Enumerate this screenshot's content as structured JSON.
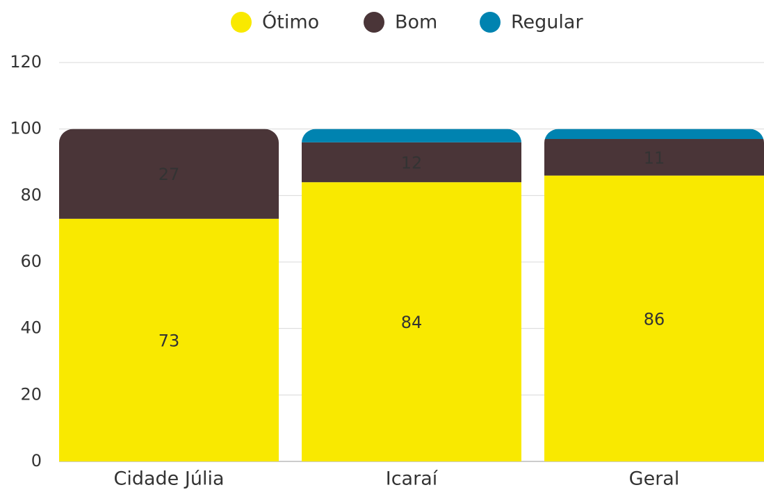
{
  "chart_data": {
    "type": "stacked_bar",
    "categories": [
      "Cidade Júlia",
      "Icaraí",
      "Geral"
    ],
    "series": [
      {
        "name": "Ótimo",
        "color": "#f9e900",
        "label_color": "#111111",
        "labels": true,
        "values": [
          73,
          84,
          86
        ]
      },
      {
        "name": "Bom",
        "color": "#4a3538",
        "label_color": "#ffffff",
        "labels": true,
        "values": [
          27,
          12,
          11
        ]
      },
      {
        "name": "Regular",
        "color": "#0083b0",
        "label_color": "#ffffff",
        "labels": false,
        "values": [
          0,
          4,
          3
        ]
      }
    ],
    "ylim": [
      0,
      120
    ],
    "yticks": [
      0,
      20,
      40,
      60,
      80,
      100,
      120
    ],
    "grid": true,
    "legend": "top"
  }
}
